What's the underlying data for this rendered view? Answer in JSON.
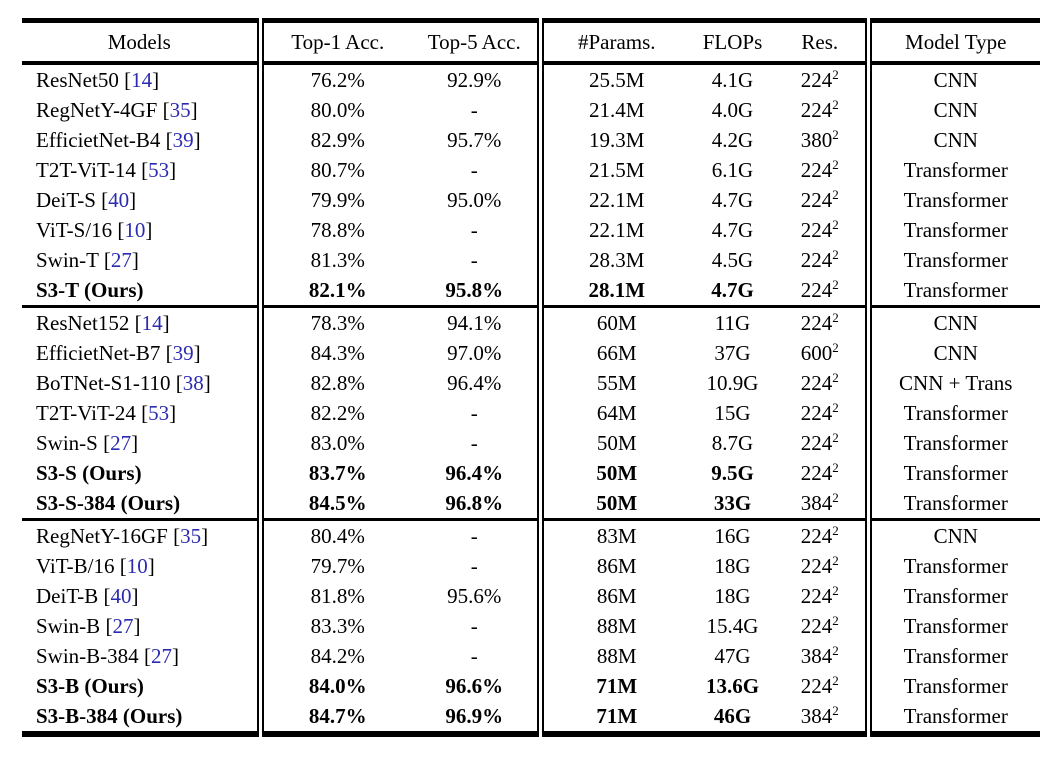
{
  "colors": {
    "background": "#ffffff",
    "text": "#000000",
    "rule": "#000000",
    "citation": "#2b2bb0"
  },
  "punctuation": {
    "cite_open": "[",
    "cite_close": "]"
  },
  "res_exponent": "2",
  "header": {
    "columns": [
      "Models",
      "Top-1 Acc.",
      "Top-5 Acc.",
      "#Params.",
      "FLOPs",
      "Res.",
      "Model Type"
    ]
  },
  "groups": [
    {
      "name": "tiny-models",
      "rows": [
        {
          "model": "ResNet50",
          "cite": "14",
          "bold": false,
          "top1": "76.2%",
          "top5": "92.9%",
          "params": "25.5M",
          "flops": "4.1G",
          "res": "224",
          "type": "CNN"
        },
        {
          "model": "RegNetY-4GF",
          "cite": "35",
          "bold": false,
          "top1": "80.0%",
          "top5": "-",
          "params": "21.4M",
          "flops": "4.0G",
          "res": "224",
          "type": "CNN"
        },
        {
          "model": "EfficietNet-B4",
          "cite": "39",
          "bold": false,
          "top1": "82.9%",
          "top5": "95.7%",
          "params": "19.3M",
          "flops": "4.2G",
          "res": "380",
          "type": "CNN"
        },
        {
          "model": "T2T-ViT-14",
          "cite": "53",
          "bold": false,
          "top1": "80.7%",
          "top5": "-",
          "params": "21.5M",
          "flops": "6.1G",
          "res": "224",
          "type": "Transformer"
        },
        {
          "model": "DeiT-S",
          "cite": "40",
          "bold": false,
          "top1": "79.9%",
          "top5": "95.0%",
          "params": "22.1M",
          "flops": "4.7G",
          "res": "224",
          "type": "Transformer"
        },
        {
          "model": "ViT-S/16",
          "cite": "10",
          "bold": false,
          "top1": "78.8%",
          "top5": "-",
          "params": "22.1M",
          "flops": "4.7G",
          "res": "224",
          "type": "Transformer"
        },
        {
          "model": "Swin-T",
          "cite": "27",
          "bold": false,
          "top1": "81.3%",
          "top5": "-",
          "params": "28.3M",
          "flops": "4.5G",
          "res": "224",
          "type": "Transformer"
        },
        {
          "model": "S3-T (Ours)",
          "cite": null,
          "bold": true,
          "top1": "82.1%",
          "top5": "95.8%",
          "params": "28.1M",
          "flops": "4.7G",
          "res": "224",
          "type": "Transformer"
        }
      ]
    },
    {
      "name": "small-models",
      "rows": [
        {
          "model": "ResNet152",
          "cite": "14",
          "bold": false,
          "top1": "78.3%",
          "top5": "94.1%",
          "params": "60M",
          "flops": "11G",
          "res": "224",
          "type": "CNN"
        },
        {
          "model": "EfficietNet-B7",
          "cite": "39",
          "bold": false,
          "top1": "84.3%",
          "top5": "97.0%",
          "params": "66M",
          "flops": "37G",
          "res": "600",
          "type": "CNN"
        },
        {
          "model": "BoTNet-S1-110",
          "cite": "38",
          "bold": false,
          "top1": "82.8%",
          "top5": "96.4%",
          "params": "55M",
          "flops": "10.9G",
          "res": "224",
          "type": "CNN + Trans"
        },
        {
          "model": "T2T-ViT-24",
          "cite": "53",
          "bold": false,
          "top1": "82.2%",
          "top5": "-",
          "params": "64M",
          "flops": "15G",
          "res": "224",
          "type": "Transformer"
        },
        {
          "model": "Swin-S",
          "cite": "27",
          "bold": false,
          "top1": "83.0%",
          "top5": "-",
          "params": "50M",
          "flops": "8.7G",
          "res": "224",
          "type": "Transformer"
        },
        {
          "model": "S3-S (Ours)",
          "cite": null,
          "bold": true,
          "top1": "83.7%",
          "top5": "96.4%",
          "params": "50M",
          "flops": "9.5G",
          "res": "224",
          "type": "Transformer"
        },
        {
          "model": "S3-S-384 (Ours)",
          "cite": null,
          "bold": true,
          "top1": "84.5%",
          "top5": "96.8%",
          "params": "50M",
          "flops": "33G",
          "res": "384",
          "type": "Transformer"
        }
      ]
    },
    {
      "name": "base-models",
      "rows": [
        {
          "model": "RegNetY-16GF",
          "cite": "35",
          "bold": false,
          "top1": "80.4%",
          "top5": "-",
          "params": "83M",
          "flops": "16G",
          "res": "224",
          "type": "CNN"
        },
        {
          "model": "ViT-B/16",
          "cite": "10",
          "bold": false,
          "top1": "79.7%",
          "top5": "-",
          "params": "86M",
          "flops": "18G",
          "res": "224",
          "type": "Transformer"
        },
        {
          "model": "DeiT-B",
          "cite": "40",
          "bold": false,
          "top1": "81.8%",
          "top5": "95.6%",
          "params": "86M",
          "flops": "18G",
          "res": "224",
          "type": "Transformer"
        },
        {
          "model": "Swin-B",
          "cite": "27",
          "bold": false,
          "top1": "83.3%",
          "top5": "-",
          "params": "88M",
          "flops": "15.4G",
          "res": "224",
          "type": "Transformer"
        },
        {
          "model": "Swin-B-384",
          "cite": "27",
          "bold": false,
          "top1": "84.2%",
          "top5": "-",
          "params": "88M",
          "flops": "47G",
          "res": "384",
          "type": "Transformer"
        },
        {
          "model": "S3-B (Ours)",
          "cite": null,
          "bold": true,
          "top1": "84.0%",
          "top5": "96.6%",
          "params": "71M",
          "flops": "13.6G",
          "res": "224",
          "type": "Transformer"
        },
        {
          "model": "S3-B-384 (Ours)",
          "cite": null,
          "bold": true,
          "top1": "84.7%",
          "top5": "96.9%",
          "params": "71M",
          "flops": "46G",
          "res": "384",
          "type": "Transformer"
        }
      ]
    }
  ]
}
